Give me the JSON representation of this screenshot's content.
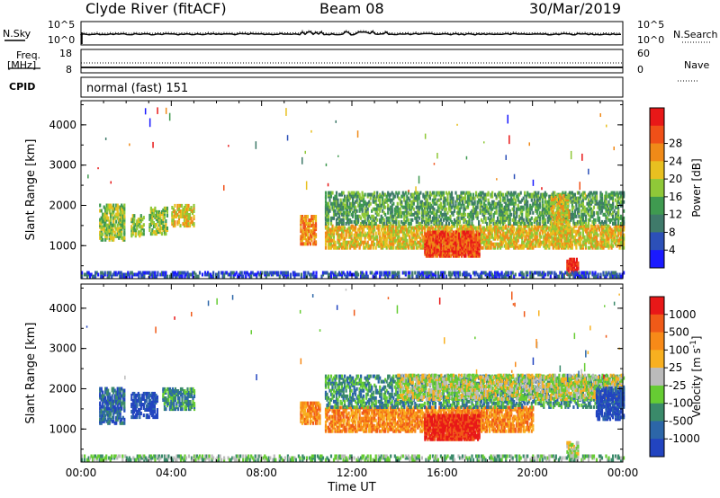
{
  "header": {
    "title_left": "Clyde River (fitACF)",
    "title_mid": "Beam 08",
    "title_right": "30/Mar/2019"
  },
  "top_panels": {
    "nsky_label": "N.Sky",
    "nsearch_label": "N.Search",
    "freq_label_1": "Freq.",
    "freq_label_2": "[MHz]",
    "nave_label": "Nave",
    "cpid_label": "CPID",
    "cpid_value": "normal (fast) 151",
    "noise_ticks_left": [
      "10^5",
      "10^0"
    ],
    "noise_ticks_right": [
      "10^5",
      "10^0"
    ],
    "freq_ticks_left": [
      "18",
      "8"
    ],
    "freq_ticks_right": [
      "60",
      "0"
    ]
  },
  "chart_data": [
    {
      "type": "heatmap",
      "name": "power-panel",
      "ylabel": "Slant Range [km]",
      "xlabel": "Time UT",
      "x_ticks": [
        "00:00",
        "04:00",
        "08:00",
        "12:00",
        "16:00",
        "20:00",
        "00:00"
      ],
      "y_ticks": [
        1000,
        2000,
        3000,
        4000
      ],
      "ylim": [
        180,
        4600
      ],
      "xlim_hours": [
        0,
        24
      ],
      "colorbar": {
        "label": "Power [dB]",
        "ticks": [
          "4",
          "8",
          "12",
          "16",
          "20",
          "24",
          "28"
        ],
        "colors": [
          "#1a1aff",
          "#2c50b8",
          "#3f7a6a",
          "#3f9a50",
          "#8fc838",
          "#e8c020",
          "#f08a18",
          "#f05018",
          "#e81818"
        ]
      },
      "blobs": [
        {
          "t0": 0.8,
          "t1": 1.9,
          "r0": 1100,
          "r1": 2000,
          "density": 0.55,
          "level": 4
        },
        {
          "t0": 2.2,
          "t1": 2.8,
          "r0": 1200,
          "r1": 1700,
          "density": 0.5,
          "level": 4
        },
        {
          "t0": 3.0,
          "t1": 3.8,
          "r0": 1250,
          "r1": 1900,
          "density": 0.5,
          "level": 4
        },
        {
          "t0": 4.0,
          "t1": 5.0,
          "r0": 1450,
          "r1": 1950,
          "density": 0.55,
          "level": 5
        },
        {
          "t0": 9.7,
          "t1": 10.4,
          "r0": 1000,
          "r1": 1700,
          "density": 0.6,
          "level": 6
        },
        {
          "t0": 10.8,
          "t1": 24.0,
          "r0": 900,
          "r1": 1450,
          "density": 0.6,
          "level": 5
        },
        {
          "t0": 10.8,
          "t1": 24.0,
          "r0": 1500,
          "r1": 2300,
          "density": 0.45,
          "level": 3
        },
        {
          "t0": 15.2,
          "t1": 17.6,
          "r0": 700,
          "r1": 1300,
          "density": 0.8,
          "level": 7
        },
        {
          "t0": 20.8,
          "t1": 21.6,
          "r0": 1200,
          "r1": 2200,
          "density": 0.5,
          "level": 5
        },
        {
          "t0": 21.5,
          "t1": 22.0,
          "r0": 250,
          "r1": 650,
          "density": 0.8,
          "level": 8
        },
        {
          "t0": 0.0,
          "t1": 24.0,
          "r0": 190,
          "r1": 300,
          "density": 0.5,
          "level": 1
        }
      ]
    },
    {
      "type": "heatmap",
      "name": "velocity-panel",
      "ylabel": "Slant Range [km]",
      "xlabel": "Time UT",
      "x_ticks": [
        "00:00",
        "04:00",
        "08:00",
        "12:00",
        "16:00",
        "20:00",
        "00:00"
      ],
      "y_ticks": [
        1000,
        2000,
        3000,
        4000
      ],
      "ylim": [
        180,
        4600
      ],
      "xlim_hours": [
        0,
        24
      ],
      "colorbar": {
        "label": "Velocity [m s",
        "label_sup": "-1",
        "label_end": "]",
        "ticks": [
          "1000",
          "500",
          "100",
          "25",
          "-25",
          "-100",
          "-500",
          "-1000"
        ],
        "colors": [
          "#2244c0",
          "#2c66a8",
          "#3a8a6a",
          "#66cc33",
          "#bbbbbb",
          "#f8b020",
          "#f88a18",
          "#f05a18",
          "#e81818"
        ]
      },
      "blobs": [
        {
          "t0": 0.8,
          "t1": 1.9,
          "r0": 1100,
          "r1": 2000,
          "density": 0.55,
          "level": 1
        },
        {
          "t0": 2.2,
          "t1": 3.4,
          "r0": 1250,
          "r1": 1850,
          "density": 0.5,
          "level": 0
        },
        {
          "t0": 3.6,
          "t1": 5.0,
          "r0": 1450,
          "r1": 1950,
          "density": 0.55,
          "level": 2
        },
        {
          "t0": 9.7,
          "t1": 10.6,
          "r0": 1100,
          "r1": 1600,
          "density": 0.6,
          "level": 6
        },
        {
          "t0": 10.8,
          "t1": 20.0,
          "r0": 900,
          "r1": 1500,
          "density": 0.6,
          "level": 6
        },
        {
          "t0": 10.8,
          "t1": 24.0,
          "r0": 1500,
          "r1": 2300,
          "density": 0.4,
          "level": 2
        },
        {
          "t0": 14.0,
          "t1": 24.0,
          "r0": 1700,
          "r1": 2300,
          "density": 0.45,
          "level": 4
        },
        {
          "t0": 15.2,
          "t1": 17.6,
          "r0": 700,
          "r1": 1300,
          "density": 0.8,
          "level": 8
        },
        {
          "t0": 22.8,
          "t1": 24.0,
          "r0": 1200,
          "r1": 2000,
          "density": 0.6,
          "level": 0
        },
        {
          "t0": 21.5,
          "t1": 22.0,
          "r0": 250,
          "r1": 650,
          "density": 0.6,
          "level": 4
        },
        {
          "t0": 0.0,
          "t1": 24.0,
          "r0": 190,
          "r1": 300,
          "density": 0.45,
          "level": 3
        }
      ]
    }
  ]
}
